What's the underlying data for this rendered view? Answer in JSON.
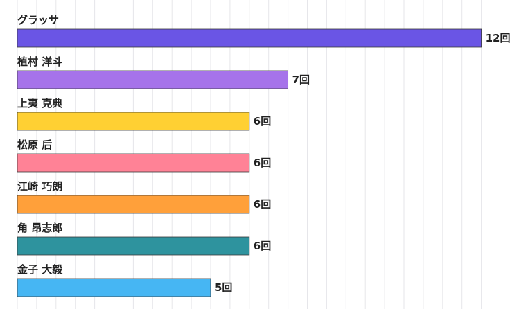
{
  "chart_data": {
    "type": "bar",
    "orientation": "horizontal",
    "categories": [
      "グラッサ",
      "植村 洋斗",
      "上夷 克典",
      "松原 后",
      "江崎 巧朗",
      "角 昂志郎",
      "金子 大毅"
    ],
    "values": [
      12,
      7,
      6,
      6,
      6,
      6,
      5
    ],
    "value_labels": [
      "12回",
      "7回",
      "6回",
      "6回",
      "6回",
      "6回",
      "5回"
    ],
    "colors": [
      "#6a55e5",
      "#a673ea",
      "#ffd033",
      "#ff8296",
      "#ffa03a",
      "#2e939e",
      "#46b6f3"
    ],
    "xlim": [
      0,
      12
    ],
    "grid": true,
    "legend": "none"
  }
}
